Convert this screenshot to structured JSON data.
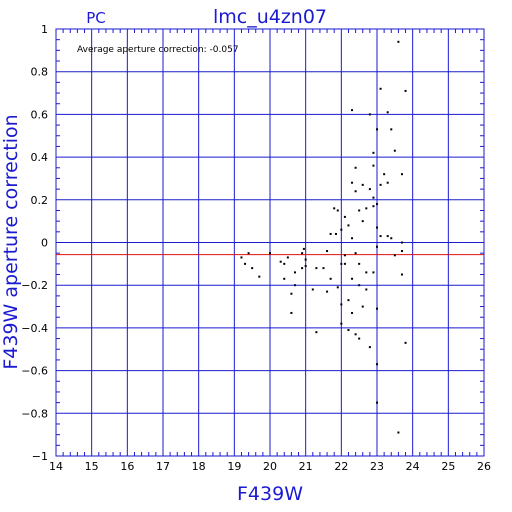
{
  "header": {
    "instrument": "PC",
    "title": "lmc_u4zn07"
  },
  "annotation": "Average aperture correction: -0.057",
  "chart_data": {
    "type": "scatter",
    "title": "lmc_u4zn07",
    "xlabel": "F439W",
    "ylabel": "F439W aperture correction",
    "xlim": [
      14,
      26
    ],
    "ylim": [
      -1,
      1
    ],
    "x_ticks": [
      14,
      15,
      16,
      17,
      18,
      19,
      20,
      21,
      22,
      23,
      24,
      25,
      26
    ],
    "y_ticks": [
      -1,
      -0.8,
      -0.6,
      -0.4,
      -0.2,
      0,
      0.2,
      0.4,
      0.6,
      0.8,
      1
    ],
    "x_tick_labels": [
      "14",
      "15",
      "16",
      "17",
      "18",
      "19",
      "20",
      "21",
      "22",
      "23",
      "24",
      "25",
      "26"
    ],
    "y_tick_labels": [
      "−1",
      "−0.8",
      "−0.6",
      "−0.4",
      "−0.2",
      "0",
      "0.2",
      "0.4",
      "0.6",
      "0.8",
      "1"
    ],
    "grid": true,
    "average_line": -0.057,
    "colors": {
      "grid": "#1a1ad0",
      "average_line": "#e01010",
      "points": "#000000"
    },
    "points": [
      [
        19.2,
        -0.07
      ],
      [
        19.3,
        -0.1
      ],
      [
        19.4,
        -0.05
      ],
      [
        19.5,
        -0.12
      ],
      [
        19.7,
        -0.16
      ],
      [
        20.0,
        -0.05
      ],
      [
        20.3,
        -0.09
      ],
      [
        20.4,
        -0.1
      ],
      [
        20.5,
        -0.07
      ],
      [
        20.4,
        -0.17
      ],
      [
        20.6,
        -0.24
      ],
      [
        20.6,
        -0.33
      ],
      [
        20.7,
        -0.14
      ],
      [
        20.7,
        -0.2
      ],
      [
        20.9,
        -0.12
      ],
      [
        20.9,
        -0.05
      ],
      [
        21.0,
        -0.11
      ],
      [
        21.0,
        -0.08
      ],
      [
        20.95,
        -0.03
      ],
      [
        21.2,
        -0.22
      ],
      [
        21.3,
        -0.42
      ],
      [
        21.3,
        -0.12
      ],
      [
        21.5,
        -0.12
      ],
      [
        21.6,
        -0.23
      ],
      [
        21.6,
        -0.04
      ],
      [
        21.7,
        0.04
      ],
      [
        21.8,
        0.16
      ],
      [
        21.85,
        0.04
      ],
      [
        21.9,
        0.15
      ],
      [
        21.9,
        -0.21
      ],
      [
        22.0,
        -0.29
      ],
      [
        22.0,
        -0.38
      ],
      [
        22.0,
        -0.1
      ],
      [
        22.0,
        0.06
      ],
      [
        22.1,
        -0.06
      ],
      [
        22.1,
        -0.1
      ],
      [
        22.1,
        0.12
      ],
      [
        22.2,
        -0.27
      ],
      [
        22.2,
        -0.41
      ],
      [
        22.2,
        0.08
      ],
      [
        22.3,
        0.02
      ],
      [
        22.3,
        -0.17
      ],
      [
        22.3,
        -0.33
      ],
      [
        22.3,
        0.28
      ],
      [
        22.3,
        0.62
      ],
      [
        22.4,
        0.24
      ],
      [
        22.4,
        -0.05
      ],
      [
        22.4,
        -0.43
      ],
      [
        22.5,
        -0.2
      ],
      [
        22.5,
        -0.45
      ],
      [
        22.5,
        0.15
      ],
      [
        22.5,
        -0.1
      ],
      [
        22.6,
        0.27
      ],
      [
        22.6,
        -0.3
      ],
      [
        22.6,
        0.1
      ],
      [
        22.7,
        0.16
      ],
      [
        22.7,
        -0.22
      ],
      [
        22.7,
        -0.14
      ],
      [
        22.8,
        -0.49
      ],
      [
        22.8,
        0.6
      ],
      [
        22.8,
        0.25
      ],
      [
        22.9,
        0.17
      ],
      [
        22.9,
        0.42
      ],
      [
        22.9,
        0.36
      ],
      [
        22.9,
        -0.14
      ],
      [
        22.9,
        0.21
      ],
      [
        23.0,
        -0.57
      ],
      [
        23.0,
        -0.75
      ],
      [
        23.0,
        0.53
      ],
      [
        23.0,
        0.18
      ],
      [
        23.0,
        0.07
      ],
      [
        23.0,
        -0.31
      ],
      [
        23.0,
        -0.02
      ],
      [
        23.1,
        0.72
      ],
      [
        23.1,
        0.27
      ],
      [
        23.2,
        0.32
      ],
      [
        23.3,
        0.61
      ],
      [
        23.3,
        0.28
      ],
      [
        23.3,
        0.03
      ],
      [
        23.4,
        0.53
      ],
      [
        23.4,
        0.02
      ],
      [
        23.5,
        0.43
      ],
      [
        23.5,
        -0.06
      ],
      [
        23.6,
        0.94
      ],
      [
        23.6,
        -0.89
      ],
      [
        23.7,
        0.32
      ],
      [
        23.7,
        -0.15
      ],
      [
        23.7,
        0.0
      ],
      [
        23.7,
        -0.04
      ],
      [
        23.8,
        0.71
      ],
      [
        23.8,
        -0.47
      ],
      [
        23.1,
        0.03
      ],
      [
        22.4,
        0.35
      ],
      [
        21.7,
        -0.17
      ]
    ]
  }
}
